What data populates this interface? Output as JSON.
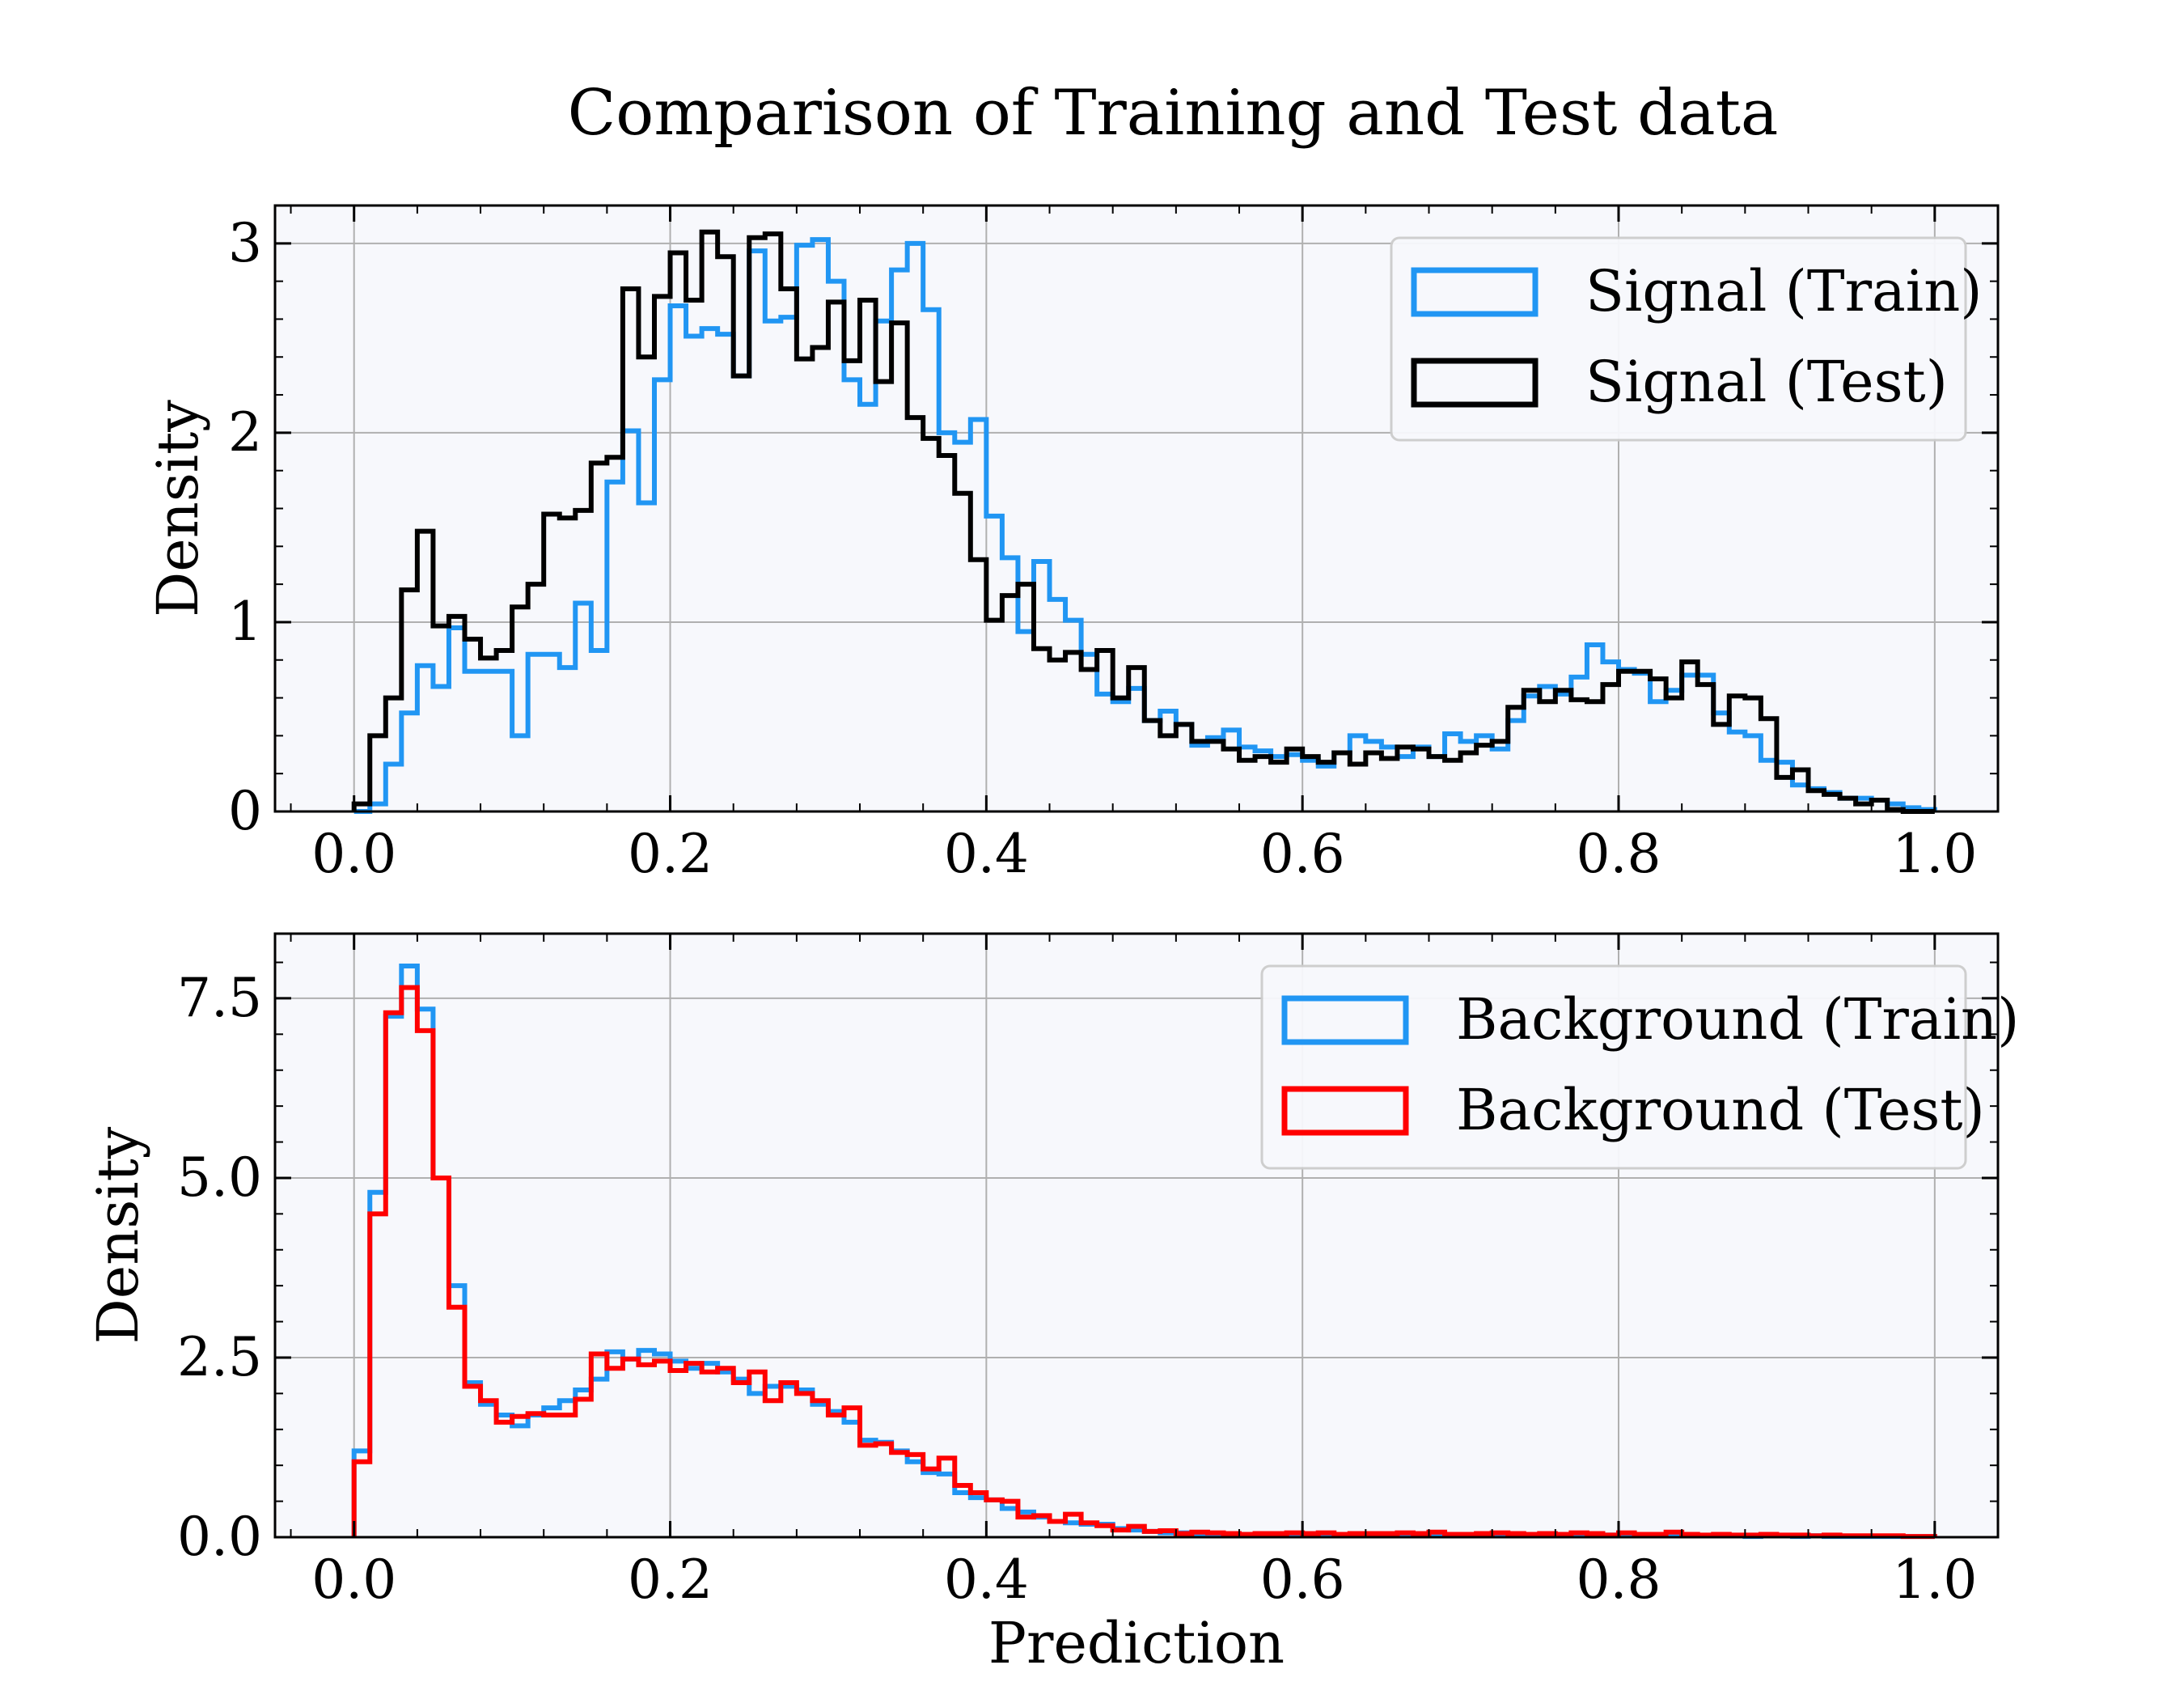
{
  "title": "Comparison of Training and Test data",
  "colors": {
    "train": "#2196F3",
    "signal_test": "#000000",
    "background_test": "#FF0000",
    "plot_background": "#F7F8FC",
    "grid": "#B0B0B0"
  },
  "chart_data": [
    {
      "type": "histogram-step",
      "title": "Comparison of Training and Test data",
      "xlabel": "",
      "ylabel": "Density",
      "xlim": [
        -0.05,
        1.04
      ],
      "ylim": [
        0,
        3.2
      ],
      "xticks": [
        0.0,
        0.2,
        0.4,
        0.6,
        0.8,
        1.0
      ],
      "xtick_labels": [
        "0.0",
        "0.2",
        "0.4",
        "0.6",
        "0.8",
        "1.0"
      ],
      "yticks": [
        0,
        1,
        2,
        3
      ],
      "ytick_labels": [
        "0",
        "1",
        "2",
        "3"
      ],
      "grid": true,
      "legend_position": "upper right",
      "bin_width": 0.01,
      "bin_start": 0.0,
      "series": [
        {
          "name": "Signal (Train)",
          "color": "#2196F3",
          "values": [
            0,
            0.04,
            0.25,
            0.52,
            0.77,
            0.66,
            0.97,
            0.74,
            0.74,
            0.74,
            0.4,
            0.83,
            0.83,
            0.76,
            1.1,
            0.85,
            1.74,
            2.01,
            1.63,
            2.28,
            2.67,
            2.51,
            2.55,
            2.52,
            2.3,
            2.96,
            2.59,
            2.61,
            2.99,
            3.02,
            2.8,
            2.28,
            2.15,
            2.59,
            2.86,
            3.0,
            2.65,
            2.0,
            1.95,
            2.07,
            1.56,
            1.34,
            0.95,
            1.32,
            1.12,
            1.01,
            0.83,
            0.62,
            0.58,
            0.65,
            0.48,
            0.53,
            0.46,
            0.35,
            0.39,
            0.43,
            0.34,
            0.32,
            0.29,
            0.3,
            0.27,
            0.24,
            0.31,
            0.4,
            0.37,
            0.34,
            0.29,
            0.34,
            0.29,
            0.41,
            0.37,
            0.4,
            0.33,
            0.48,
            0.61,
            0.66,
            0.62,
            0.71,
            0.88,
            0.79,
            0.75,
            0.73,
            0.58,
            0.64,
            0.72,
            0.72,
            0.52,
            0.42,
            0.4,
            0.27,
            0.26,
            0.14,
            0.12,
            0.1,
            0.07,
            0.07,
            0.06,
            0.04,
            0.02,
            0.01
          ]
        },
        {
          "name": "Signal (Test)",
          "color": "#000000",
          "values": [
            0.04,
            0.4,
            0.6,
            1.17,
            1.48,
            0.98,
            1.03,
            0.91,
            0.81,
            0.85,
            1.08,
            1.2,
            1.57,
            1.55,
            1.59,
            1.84,
            1.87,
            2.76,
            2.4,
            2.72,
            2.95,
            2.7,
            3.06,
            2.93,
            2.3,
            3.03,
            3.05,
            2.76,
            2.39,
            2.45,
            2.69,
            2.38,
            2.7,
            2.27,
            2.58,
            2.08,
            1.97,
            1.88,
            1.68,
            1.33,
            1.01,
            1.14,
            1.2,
            0.86,
            0.8,
            0.84,
            0.75,
            0.85,
            0.6,
            0.76,
            0.48,
            0.4,
            0.46,
            0.37,
            0.37,
            0.33,
            0.27,
            0.29,
            0.26,
            0.33,
            0.29,
            0.26,
            0.31,
            0.25,
            0.31,
            0.28,
            0.34,
            0.33,
            0.29,
            0.27,
            0.31,
            0.35,
            0.37,
            0.55,
            0.64,
            0.58,
            0.64,
            0.59,
            0.58,
            0.67,
            0.74,
            0.74,
            0.7,
            0.6,
            0.79,
            0.67,
            0.46,
            0.61,
            0.6,
            0.49,
            0.18,
            0.22,
            0.11,
            0.09,
            0.07,
            0.04,
            0.06,
            0.01,
            0.0,
            0.0
          ]
        }
      ]
    },
    {
      "type": "histogram-step",
      "xlabel": "Prediction",
      "ylabel": "Density",
      "xlim": [
        -0.05,
        1.04
      ],
      "ylim": [
        0,
        8.4
      ],
      "xticks": [
        0.0,
        0.2,
        0.4,
        0.6,
        0.8,
        1.0
      ],
      "xtick_labels": [
        "0.0",
        "0.2",
        "0.4",
        "0.6",
        "0.8",
        "1.0"
      ],
      "yticks": [
        0.0,
        2.5,
        5.0,
        7.5
      ],
      "ytick_labels": [
        "0.0",
        "2.5",
        "5.0",
        "7.5"
      ],
      "grid": true,
      "legend_position": "upper right",
      "bin_width": 0.01,
      "bin_start": 0.0,
      "series": [
        {
          "name": "Background (Train)",
          "color": "#2196F3",
          "values": [
            1.2,
            4.8,
            7.25,
            7.95,
            7.35,
            5.0,
            3.5,
            2.15,
            1.85,
            1.7,
            1.55,
            1.7,
            1.8,
            1.9,
            2.05,
            2.2,
            2.58,
            2.48,
            2.6,
            2.55,
            2.45,
            2.35,
            2.42,
            2.3,
            2.2,
            2.0,
            2.1,
            2.1,
            2.05,
            1.85,
            1.75,
            1.6,
            1.35,
            1.32,
            1.2,
            1.05,
            0.9,
            0.88,
            0.62,
            0.55,
            0.52,
            0.4,
            0.35,
            0.28,
            0.22,
            0.2,
            0.18,
            0.18,
            0.12,
            0.1,
            0.08,
            0.06,
            0.06,
            0.05,
            0.04,
            0.03,
            0.03,
            0.02,
            0.04,
            0.02,
            0.03,
            0.04,
            0.02,
            0.03,
            0.02,
            0.04,
            0.03,
            0.04,
            0.05,
            0.03,
            0.03,
            0.03,
            0.04,
            0.04,
            0.03,
            0.04,
            0.03,
            0.03,
            0.02,
            0.03,
            0.05,
            0.03,
            0.04,
            0.03,
            0.02,
            0.02,
            0.02,
            0.02,
            0.01,
            0.02,
            0.02,
            0.01,
            0.02,
            0.01,
            0.01,
            0.01,
            0.01,
            0.01,
            0.01,
            0.01
          ]
        },
        {
          "name": "Background (Test)",
          "color": "#FF0000",
          "values": [
            1.05,
            4.5,
            7.3,
            7.65,
            7.05,
            5.0,
            3.2,
            2.1,
            1.9,
            1.6,
            1.68,
            1.72,
            1.7,
            1.7,
            1.92,
            2.55,
            2.35,
            2.48,
            2.4,
            2.45,
            2.32,
            2.42,
            2.3,
            2.35,
            2.15,
            2.3,
            1.9,
            2.15,
            2.0,
            1.9,
            1.7,
            1.8,
            1.28,
            1.3,
            1.18,
            1.15,
            0.95,
            1.1,
            0.72,
            0.62,
            0.52,
            0.5,
            0.28,
            0.3,
            0.22,
            0.32,
            0.2,
            0.16,
            0.1,
            0.15,
            0.08,
            0.09,
            0.05,
            0.07,
            0.06,
            0.05,
            0.04,
            0.05,
            0.05,
            0.06,
            0.05,
            0.06,
            0.04,
            0.05,
            0.05,
            0.05,
            0.06,
            0.05,
            0.07,
            0.04,
            0.04,
            0.05,
            0.06,
            0.05,
            0.04,
            0.05,
            0.04,
            0.06,
            0.05,
            0.03,
            0.06,
            0.04,
            0.04,
            0.07,
            0.04,
            0.03,
            0.04,
            0.03,
            0.03,
            0.04,
            0.03,
            0.03,
            0.02,
            0.03,
            0.02,
            0.02,
            0.02,
            0.02,
            0.01,
            0.01
          ]
        }
      ]
    }
  ]
}
